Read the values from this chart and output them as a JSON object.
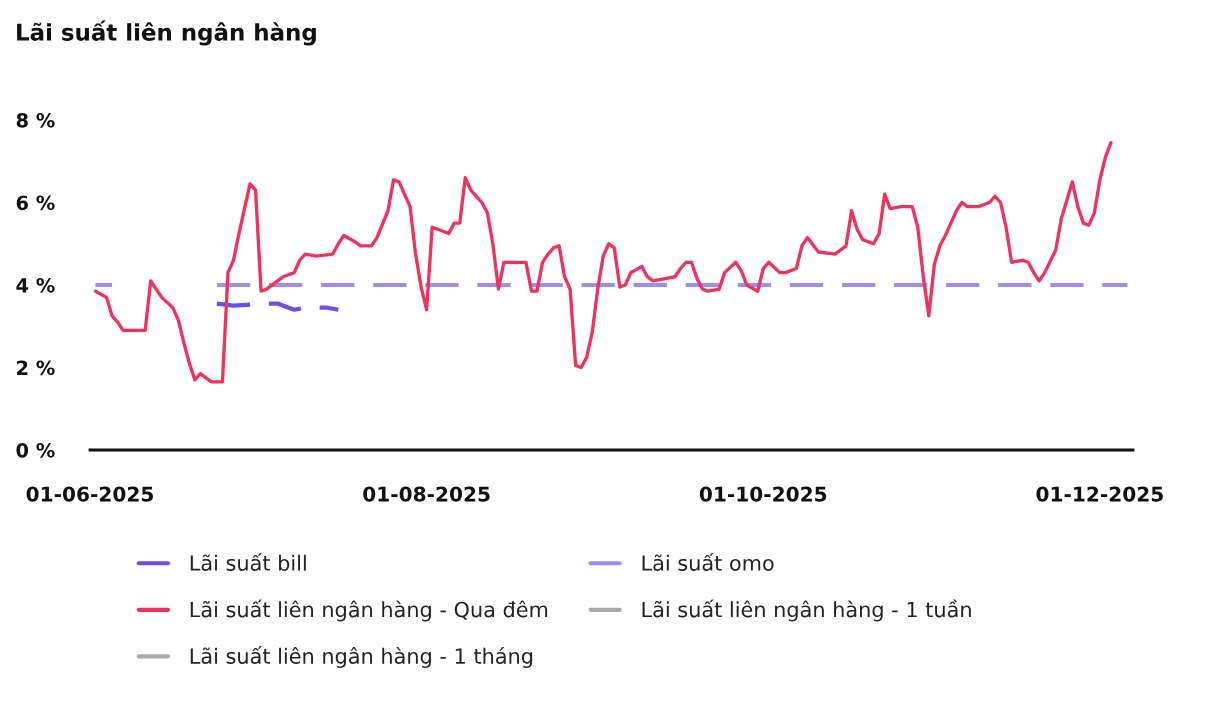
{
  "chart_data": {
    "type": "line",
    "title": "Lãi suất liên ngân hàng",
    "xlim": [
      "2025-06-01",
      "2025-12-07"
    ],
    "xticks": [
      {
        "value": "2025-06-01",
        "label": "01-06-2025"
      },
      {
        "value": "2025-08-01",
        "label": "01-08-2025"
      },
      {
        "value": "2025-10-01",
        "label": "01-10-2025"
      },
      {
        "value": "2025-12-01",
        "label": "01-12-2025"
      }
    ],
    "ylim": [
      0,
      8
    ],
    "yticks": [
      {
        "value": 0,
        "label": "0 %"
      },
      {
        "value": 2,
        "label": "2 %"
      },
      {
        "value": 4,
        "label": "4 %"
      },
      {
        "value": 6,
        "label": "6 %"
      },
      {
        "value": 8,
        "label": "8 %"
      }
    ],
    "grid": false,
    "legend": "bottom",
    "series": [
      {
        "name": "Lãi suất bill",
        "color": "#6452ef",
        "line_style": "dashed",
        "x": [
          "2025-06-24",
          "2025-06-27",
          "2025-07-03",
          "2025-07-05",
          "2025-07-07",
          "2025-07-08",
          "2025-07-10",
          "2025-07-11",
          "2025-07-14",
          "2025-07-16"
        ],
        "values": [
          3.55,
          3.5,
          3.55,
          3.55,
          3.45,
          3.4,
          3.45,
          3.45,
          3.45,
          3.4
        ]
      },
      {
        "name": "Lãi suất omo",
        "color": "#9d8ef5",
        "line_style": "dashed",
        "x": [
          "2025-06-02",
          "2025-06-05",
          "2025-06-10",
          "2025-06-24",
          "2025-12-06"
        ],
        "values": [
          4.0,
          4.0,
          null,
          4.0,
          4.0
        ]
      },
      {
        "name": "Lãi suất liên ngân hàng - Qua đêm",
        "color": "#f0335c",
        "line_style": "solid",
        "x": [
          "2025-06-02",
          "2025-06-04",
          "2025-06-05",
          "2025-06-06",
          "2025-06-07",
          "2025-06-11",
          "2025-06-12",
          "2025-06-14",
          "2025-06-16",
          "2025-06-17",
          "2025-06-18",
          "2025-06-19",
          "2025-06-20",
          "2025-06-21",
          "2025-06-22",
          "2025-06-23",
          "2025-06-25",
          "2025-06-26",
          "2025-06-27",
          "2025-06-28",
          "2025-06-30",
          "2025-07-01",
          "2025-07-02",
          "2025-07-03",
          "2025-07-05",
          "2025-07-06",
          "2025-07-08",
          "2025-07-09",
          "2025-07-10",
          "2025-07-12",
          "2025-07-15",
          "2025-07-16",
          "2025-07-17",
          "2025-07-19",
          "2025-07-20",
          "2025-07-22",
          "2025-07-23",
          "2025-07-25",
          "2025-07-26",
          "2025-07-27",
          "2025-07-29",
          "2025-07-30",
          "2025-07-31",
          "2025-08-01",
          "2025-08-02",
          "2025-08-03",
          "2025-08-05",
          "2025-08-06",
          "2025-08-07",
          "2025-08-08",
          "2025-08-09",
          "2025-08-10",
          "2025-08-11",
          "2025-08-12",
          "2025-08-13",
          "2025-08-14",
          "2025-08-15",
          "2025-08-17",
          "2025-08-19",
          "2025-08-20",
          "2025-08-21",
          "2025-08-22",
          "2025-08-23",
          "2025-08-24",
          "2025-08-25",
          "2025-08-26",
          "2025-08-27",
          "2025-08-28",
          "2025-08-29",
          "2025-08-30",
          "2025-08-31",
          "2025-09-01",
          "2025-09-02",
          "2025-09-03",
          "2025-09-04",
          "2025-09-05",
          "2025-09-06",
          "2025-09-07",
          "2025-09-09",
          "2025-09-10",
          "2025-09-11",
          "2025-09-13",
          "2025-09-15",
          "2025-09-16",
          "2025-09-17",
          "2025-09-18",
          "2025-09-19",
          "2025-09-20",
          "2025-09-21",
          "2025-09-23",
          "2025-09-24",
          "2025-09-26",
          "2025-09-27",
          "2025-09-28",
          "2025-09-30",
          "2025-10-01",
          "2025-10-02",
          "2025-10-04",
          "2025-10-05",
          "2025-10-07",
          "2025-10-08",
          "2025-10-09",
          "2025-10-11",
          "2025-10-14",
          "2025-10-16",
          "2025-10-17",
          "2025-10-18",
          "2025-10-19",
          "2025-10-21",
          "2025-10-22",
          "2025-10-23",
          "2025-10-24",
          "2025-10-26",
          "2025-10-28",
          "2025-10-29",
          "2025-10-30",
          "2025-10-31",
          "2025-11-01",
          "2025-11-02",
          "2025-11-03",
          "2025-11-04",
          "2025-11-05",
          "2025-11-06",
          "2025-11-07",
          "2025-11-09",
          "2025-11-11",
          "2025-11-12",
          "2025-11-13",
          "2025-11-14",
          "2025-11-15",
          "2025-11-17",
          "2025-11-18",
          "2025-11-19",
          "2025-11-20",
          "2025-11-21",
          "2025-11-23",
          "2025-11-24",
          "2025-11-26",
          "2025-11-27",
          "2025-11-28",
          "2025-11-29",
          "2025-11-30",
          "2025-12-01",
          "2025-12-02",
          "2025-12-03"
        ],
        "values": [
          3.85,
          3.7,
          3.25,
          3.1,
          2.9,
          2.9,
          4.1,
          3.7,
          3.45,
          3.15,
          2.6,
          2.1,
          1.7,
          1.85,
          1.75,
          1.65,
          1.65,
          4.3,
          4.6,
          5.25,
          6.45,
          6.3,
          3.85,
          3.9,
          4.1,
          4.2,
          4.3,
          4.6,
          4.75,
          4.7,
          4.75,
          5.0,
          5.2,
          5.05,
          4.95,
          4.95,
          5.15,
          5.8,
          6.55,
          6.5,
          5.9,
          4.75,
          3.95,
          3.4,
          5.4,
          5.35,
          5.25,
          5.5,
          5.5,
          6.6,
          6.3,
          6.15,
          6.0,
          5.75,
          5.0,
          3.9,
          4.55,
          4.55,
          4.55,
          3.85,
          3.85,
          4.55,
          4.75,
          4.9,
          4.95,
          4.2,
          3.9,
          2.05,
          2.0,
          2.25,
          2.85,
          3.9,
          4.7,
          5.0,
          4.9,
          3.95,
          4.0,
          4.3,
          4.45,
          4.2,
          4.1,
          4.15,
          4.2,
          4.4,
          4.55,
          4.55,
          4.15,
          3.9,
          3.85,
          3.9,
          4.3,
          4.55,
          4.35,
          4.0,
          3.85,
          4.4,
          4.55,
          4.3,
          4.3,
          4.4,
          4.95,
          5.15,
          4.8,
          4.75,
          4.95,
          5.8,
          5.35,
          5.1,
          5.0,
          5.25,
          6.2,
          5.85,
          5.9,
          5.9,
          5.4,
          4.2,
          3.25,
          4.5,
          4.95,
          5.2,
          5.5,
          5.8,
          6.0,
          5.9,
          5.9,
          6.0,
          6.15,
          6.0,
          5.4,
          4.55,
          4.6,
          4.55,
          4.3,
          4.1,
          4.3,
          4.85,
          5.6,
          6.5,
          5.9,
          5.5,
          5.45,
          5.75,
          6.55,
          7.1,
          7.45
        ]
      },
      {
        "name": "Lãi suất liên ngân hàng - 1 tuần",
        "color": "#aaaaaa"
      },
      {
        "name": "Lãi suất liên ngân hàng - 1 tháng",
        "color": "#aaaaaa"
      }
    ]
  }
}
